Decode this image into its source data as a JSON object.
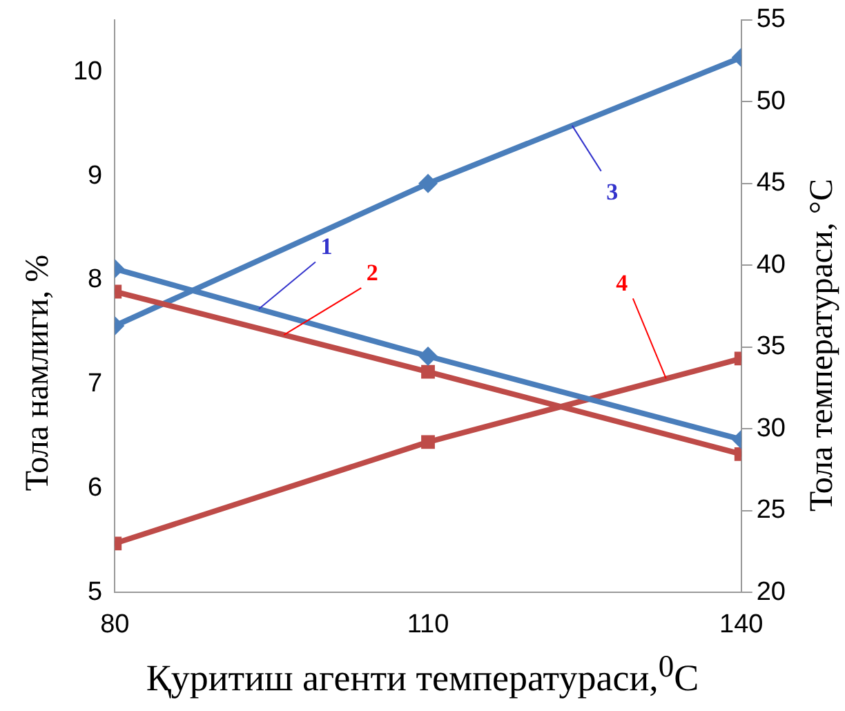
{
  "chart_data": {
    "type": "line",
    "x": [
      80,
      110,
      140
    ],
    "xlim": [
      80,
      140
    ],
    "xticks": [
      80,
      110,
      140
    ],
    "ylim": [
      5,
      10.5
    ],
    "yticks": [
      5,
      6,
      7,
      8,
      9,
      10
    ],
    "y2lim": [
      20,
      55
    ],
    "y2ticks": [
      20,
      25,
      30,
      35,
      40,
      45,
      50,
      55
    ],
    "xlabel": "Қуритиш агенти температураси,$^{0}$C",
    "ylabel": "Тола намлиги, %",
    "y2label": "Тола температураси, °C",
    "grid": false,
    "legend": false,
    "line_style": "solid",
    "series": [
      {
        "name": "1",
        "color": "#4a7ebb",
        "marker": "diamond",
        "values": [
          8.11,
          7.27,
          6.47
        ]
      },
      {
        "name": "2",
        "color": "#be4b48",
        "marker": "square",
        "values": [
          7.89,
          7.12,
          6.33
        ]
      },
      {
        "name": "3",
        "color": "#4a7ebb",
        "marker": "diamond",
        "axis": "y2",
        "values": [
          36.3,
          45,
          52.7
        ]
      },
      {
        "name": "4",
        "color": "#be4b48",
        "marker": "square",
        "axis": "y2",
        "values": [
          23,
          29.2,
          34.3
        ]
      }
    ]
  }
}
